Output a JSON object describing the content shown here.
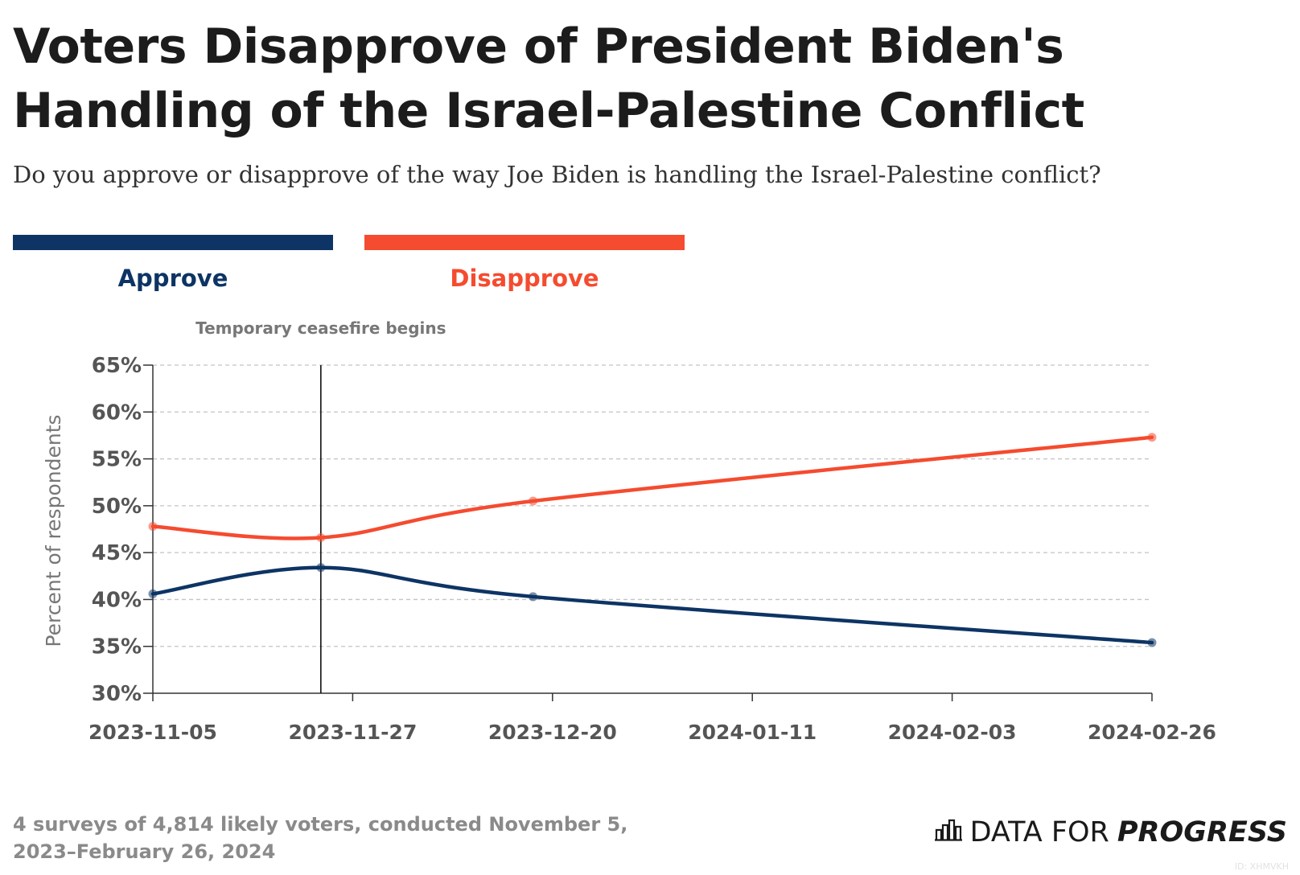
{
  "header": {
    "title": "Voters Disapprove of President Biden's Handling of the Israel-Palestine Conflict",
    "subtitle": "Do you approve or disapprove of the way Joe Biden is handling the Israel-Palestine conflict?"
  },
  "legend": {
    "approve": "Approve",
    "disapprove": "Disapprove"
  },
  "colors": {
    "approve": "#0d3464",
    "disapprove": "#f54b2f",
    "grid": "#c4c4c4",
    "axis": "#333333"
  },
  "chart_data": {
    "type": "line",
    "title": "Voters Disapprove of President Biden's Handling of the Israel-Palestine Conflict",
    "subtitle": "Do you approve or disapprove of the way Joe Biden is handling the Israel-Palestine conflict?",
    "xlabel": "",
    "ylabel": "Percent of respondents",
    "x_ticks": [
      "2023-11-05",
      "2023-11-27",
      "2023-12-20",
      "2024-01-11",
      "2024-02-03",
      "2024-02-26"
    ],
    "y_ticks": [
      "30%",
      "35%",
      "40%",
      "45%",
      "50%",
      "55%",
      "60%",
      "65%"
    ],
    "ylim": [
      30,
      65
    ],
    "xlim": [
      "2023-11-05",
      "2024-02-26"
    ],
    "grid": "horizontal dashed",
    "legend_position": "top-left",
    "series": [
      {
        "name": "Approve",
        "color": "#0d3464",
        "points": [
          {
            "x": "2023-11-05",
            "y": 40.6
          },
          {
            "x": "2023-11-24",
            "y": 43.4
          },
          {
            "x": "2023-12-18",
            "y": 40.3
          },
          {
            "x": "2024-02-26",
            "y": 35.4
          }
        ]
      },
      {
        "name": "Disapprove",
        "color": "#f54b2f",
        "points": [
          {
            "x": "2023-11-05",
            "y": 47.8
          },
          {
            "x": "2023-11-24",
            "y": 46.6
          },
          {
            "x": "2023-12-18",
            "y": 50.5
          },
          {
            "x": "2024-02-26",
            "y": 57.3
          }
        ]
      }
    ],
    "annotations": [
      {
        "label": "Temporary ceasefire begins",
        "x": "2023-11-24"
      }
    ]
  },
  "footer": {
    "note": "4 surveys of 4,814 likely voters, conducted November 5, 2023–February 26, 2024",
    "brand_prefix": "DATA FOR",
    "brand_strong": "PROGRESS",
    "brand_icon": "bar-chart-logo-icon",
    "image_id": "ID: XHMVKH"
  }
}
